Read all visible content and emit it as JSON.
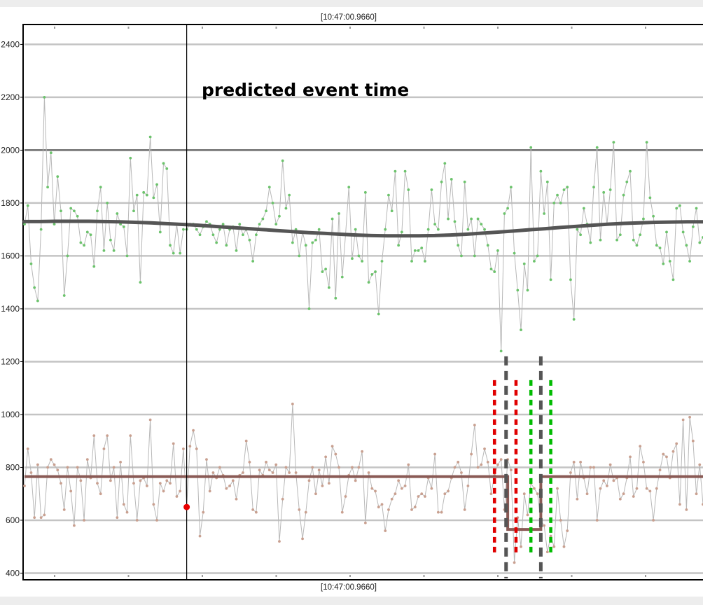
{
  "chart_data": {
    "type": "line",
    "title": "",
    "xlabel": "",
    "ylabel": "",
    "ylim": [
      380,
      2470
    ],
    "yticks": [
      400,
      600,
      800,
      1000,
      1200,
      1400,
      1600,
      1800,
      2000,
      2200,
      2400
    ],
    "grid": true,
    "cursor_label_top": "[10:47:00.9660]",
    "cursor_label_bottom": "[10:47:00.9660]",
    "annotation": "predicted event time",
    "cursor_index": 49,
    "colors": {
      "upper_points": "#6cc36c",
      "lower_points": "#c9a090",
      "raw_line": "#b8b8b8",
      "upper_trend": "#555555",
      "lower_trend": "#8a5a55",
      "threshold_line": "#707070",
      "event_marker": "#e80000",
      "marker_red": "#e00000",
      "marker_green": "#00bb00",
      "marker_gray": "#555555"
    },
    "threshold": 2000,
    "series": [
      {
        "values": [
          1720,
          1790,
          1570,
          1480,
          1430,
          1700,
          2200,
          1860,
          1990,
          1720,
          1900,
          1770,
          1450,
          1600,
          1780,
          1770,
          1750,
          1650,
          1640,
          1690,
          1680,
          1560,
          1770,
          1860,
          1620,
          1800,
          1660,
          1620,
          1760,
          1720,
          1710,
          1600,
          1970,
          1770,
          1830,
          1500,
          1840,
          1830,
          2050,
          1820,
          1870,
          1690,
          1950,
          1930,
          1640,
          1610,
          1720,
          1610,
          1700,
          1700,
          1720,
          1720,
          1700,
          1680,
          1710,
          1730,
          1720,
          1680,
          1650,
          1700,
          1720,
          1640,
          1700,
          1710,
          1620,
          1720,
          1680,
          1700,
          1660,
          1580,
          1680,
          1720,
          1740,
          1770,
          1860,
          1800,
          1720,
          1750,
          1960,
          1780,
          1830,
          1650,
          1700,
          1600,
          1690,
          1640,
          1400,
          1650,
          1660,
          1700,
          1540,
          1550,
          1480,
          1740,
          1440,
          1760,
          1520,
          1680,
          1860,
          1590,
          1700,
          1600,
          1580,
          1840,
          1500,
          1530,
          1540,
          1380,
          1580,
          1700,
          1830,
          1770,
          1920,
          1640,
          1690,
          1920,
          1850,
          1580,
          1620,
          1620,
          1630,
          1580,
          1700,
          1850,
          1720,
          1700,
          1880,
          1950,
          1740,
          1890,
          1730,
          1640,
          1600,
          1880,
          1700,
          1740,
          1600,
          1740,
          1720,
          1700,
          1640,
          1550,
          1540,
          1620,
          1240,
          1760,
          1780,
          1860,
          1610,
          1470,
          1320,
          1570,
          1470,
          2010,
          1580,
          1600,
          1920,
          1760,
          1880,
          1510,
          1800,
          1830,
          1800,
          1850,
          1860,
          1510,
          1360,
          1700,
          1680,
          1780,
          1720,
          1650,
          1860,
          2010,
          1660,
          1840,
          1720,
          1850,
          2030,
          1660,
          1680,
          1830,
          1880,
          1920,
          1660,
          1640,
          1680,
          1740,
          2030,
          1820,
          1750,
          1640,
          1630,
          1570,
          1690,
          1580,
          1510,
          1780,
          1790,
          1690,
          1640,
          1580,
          1710,
          1780,
          1650,
          1670
        ],
        "trend": [
          1730,
          1730,
          1731,
          1731,
          1731,
          1730,
          1729,
          1727,
          1725,
          1722,
          1719,
          1716,
          1712,
          1708,
          1704,
          1700,
          1696,
          1692,
          1688,
          1685,
          1682,
          1679,
          1677,
          1676,
          1676,
          1676,
          1677,
          1679,
          1682,
          1686,
          1690,
          1694,
          1699,
          1703,
          1708,
          1712,
          1716,
          1720,
          1723,
          1725,
          1727,
          1728,
          1729,
          1729
        ]
      },
      {
        "values": [
          730,
          870,
          780,
          610,
          810,
          610,
          620,
          800,
          830,
          810,
          790,
          740,
          640,
          800,
          710,
          580,
          800,
          750,
          600,
          830,
          760,
          920,
          740,
          700,
          870,
          920,
          750,
          800,
          610,
          820,
          660,
          630,
          920,
          740,
          600,
          750,
          760,
          730,
          980,
          660,
          600,
          740,
          710,
          750,
          740,
          890,
          690,
          710,
          870,
          650,
          880,
          940,
          870,
          540,
          630,
          830,
          710,
          780,
          760,
          800,
          770,
          720,
          730,
          750,
          680,
          770,
          780,
          900,
          820,
          640,
          630,
          790,
          770,
          820,
          790,
          780,
          810,
          520,
          680,
          800,
          780,
          1040,
          780,
          640,
          530,
          630,
          750,
          800,
          700,
          790,
          730,
          840,
          740,
          880,
          850,
          800,
          630,
          690,
          770,
          800,
          750,
          800,
          860,
          590,
          780,
          720,
          710,
          650,
          660,
          560,
          640,
          680,
          700,
          750,
          720,
          730,
          810,
          640,
          650,
          690,
          700,
          690,
          760,
          720,
          850,
          630,
          630,
          700,
          710,
          760,
          800,
          820,
          780,
          640,
          730,
          850,
          960,
          800,
          810,
          870,
          820,
          700,
          770,
          810,
          830,
          640,
          830,
          790,
          440,
          610,
          500,
          700,
          620,
          740,
          720,
          700,
          600,
          580,
          480,
          540,
          500,
          720,
          600,
          500,
          560,
          780,
          820,
          680,
          820,
          760,
          700,
          800,
          800,
          600,
          720,
          750,
          730,
          810,
          750,
          760,
          680,
          700,
          760,
          840,
          690,
          720,
          880,
          820,
          720,
          710,
          600,
          720,
          790,
          850,
          840,
          760,
          860,
          890,
          660,
          980,
          640,
          990,
          900,
          700,
          810,
          660,
          680,
          780,
          640,
          980,
          920,
          950
        ]
      }
    ],
    "lower_trend": {
      "baseline": 765,
      "dip_value": 565,
      "dip_start_index": 146,
      "dip_end_index": 156
    },
    "vertical_markers": [
      {
        "color": "marker_red",
        "index": 142,
        "y_range": [
          470,
          1130
        ]
      },
      {
        "color": "marker_gray",
        "index": 145.5,
        "y_range": [
          380,
          1220
        ]
      },
      {
        "color": "marker_red",
        "index": 148.5,
        "y_range": [
          470,
          1130
        ]
      },
      {
        "color": "marker_green",
        "index": 153,
        "y_range": [
          470,
          1130
        ]
      },
      {
        "color": "marker_gray",
        "index": 156,
        "y_range": [
          380,
          1220
        ]
      },
      {
        "color": "marker_green",
        "index": 159,
        "y_range": [
          470,
          1130
        ]
      }
    ]
  }
}
